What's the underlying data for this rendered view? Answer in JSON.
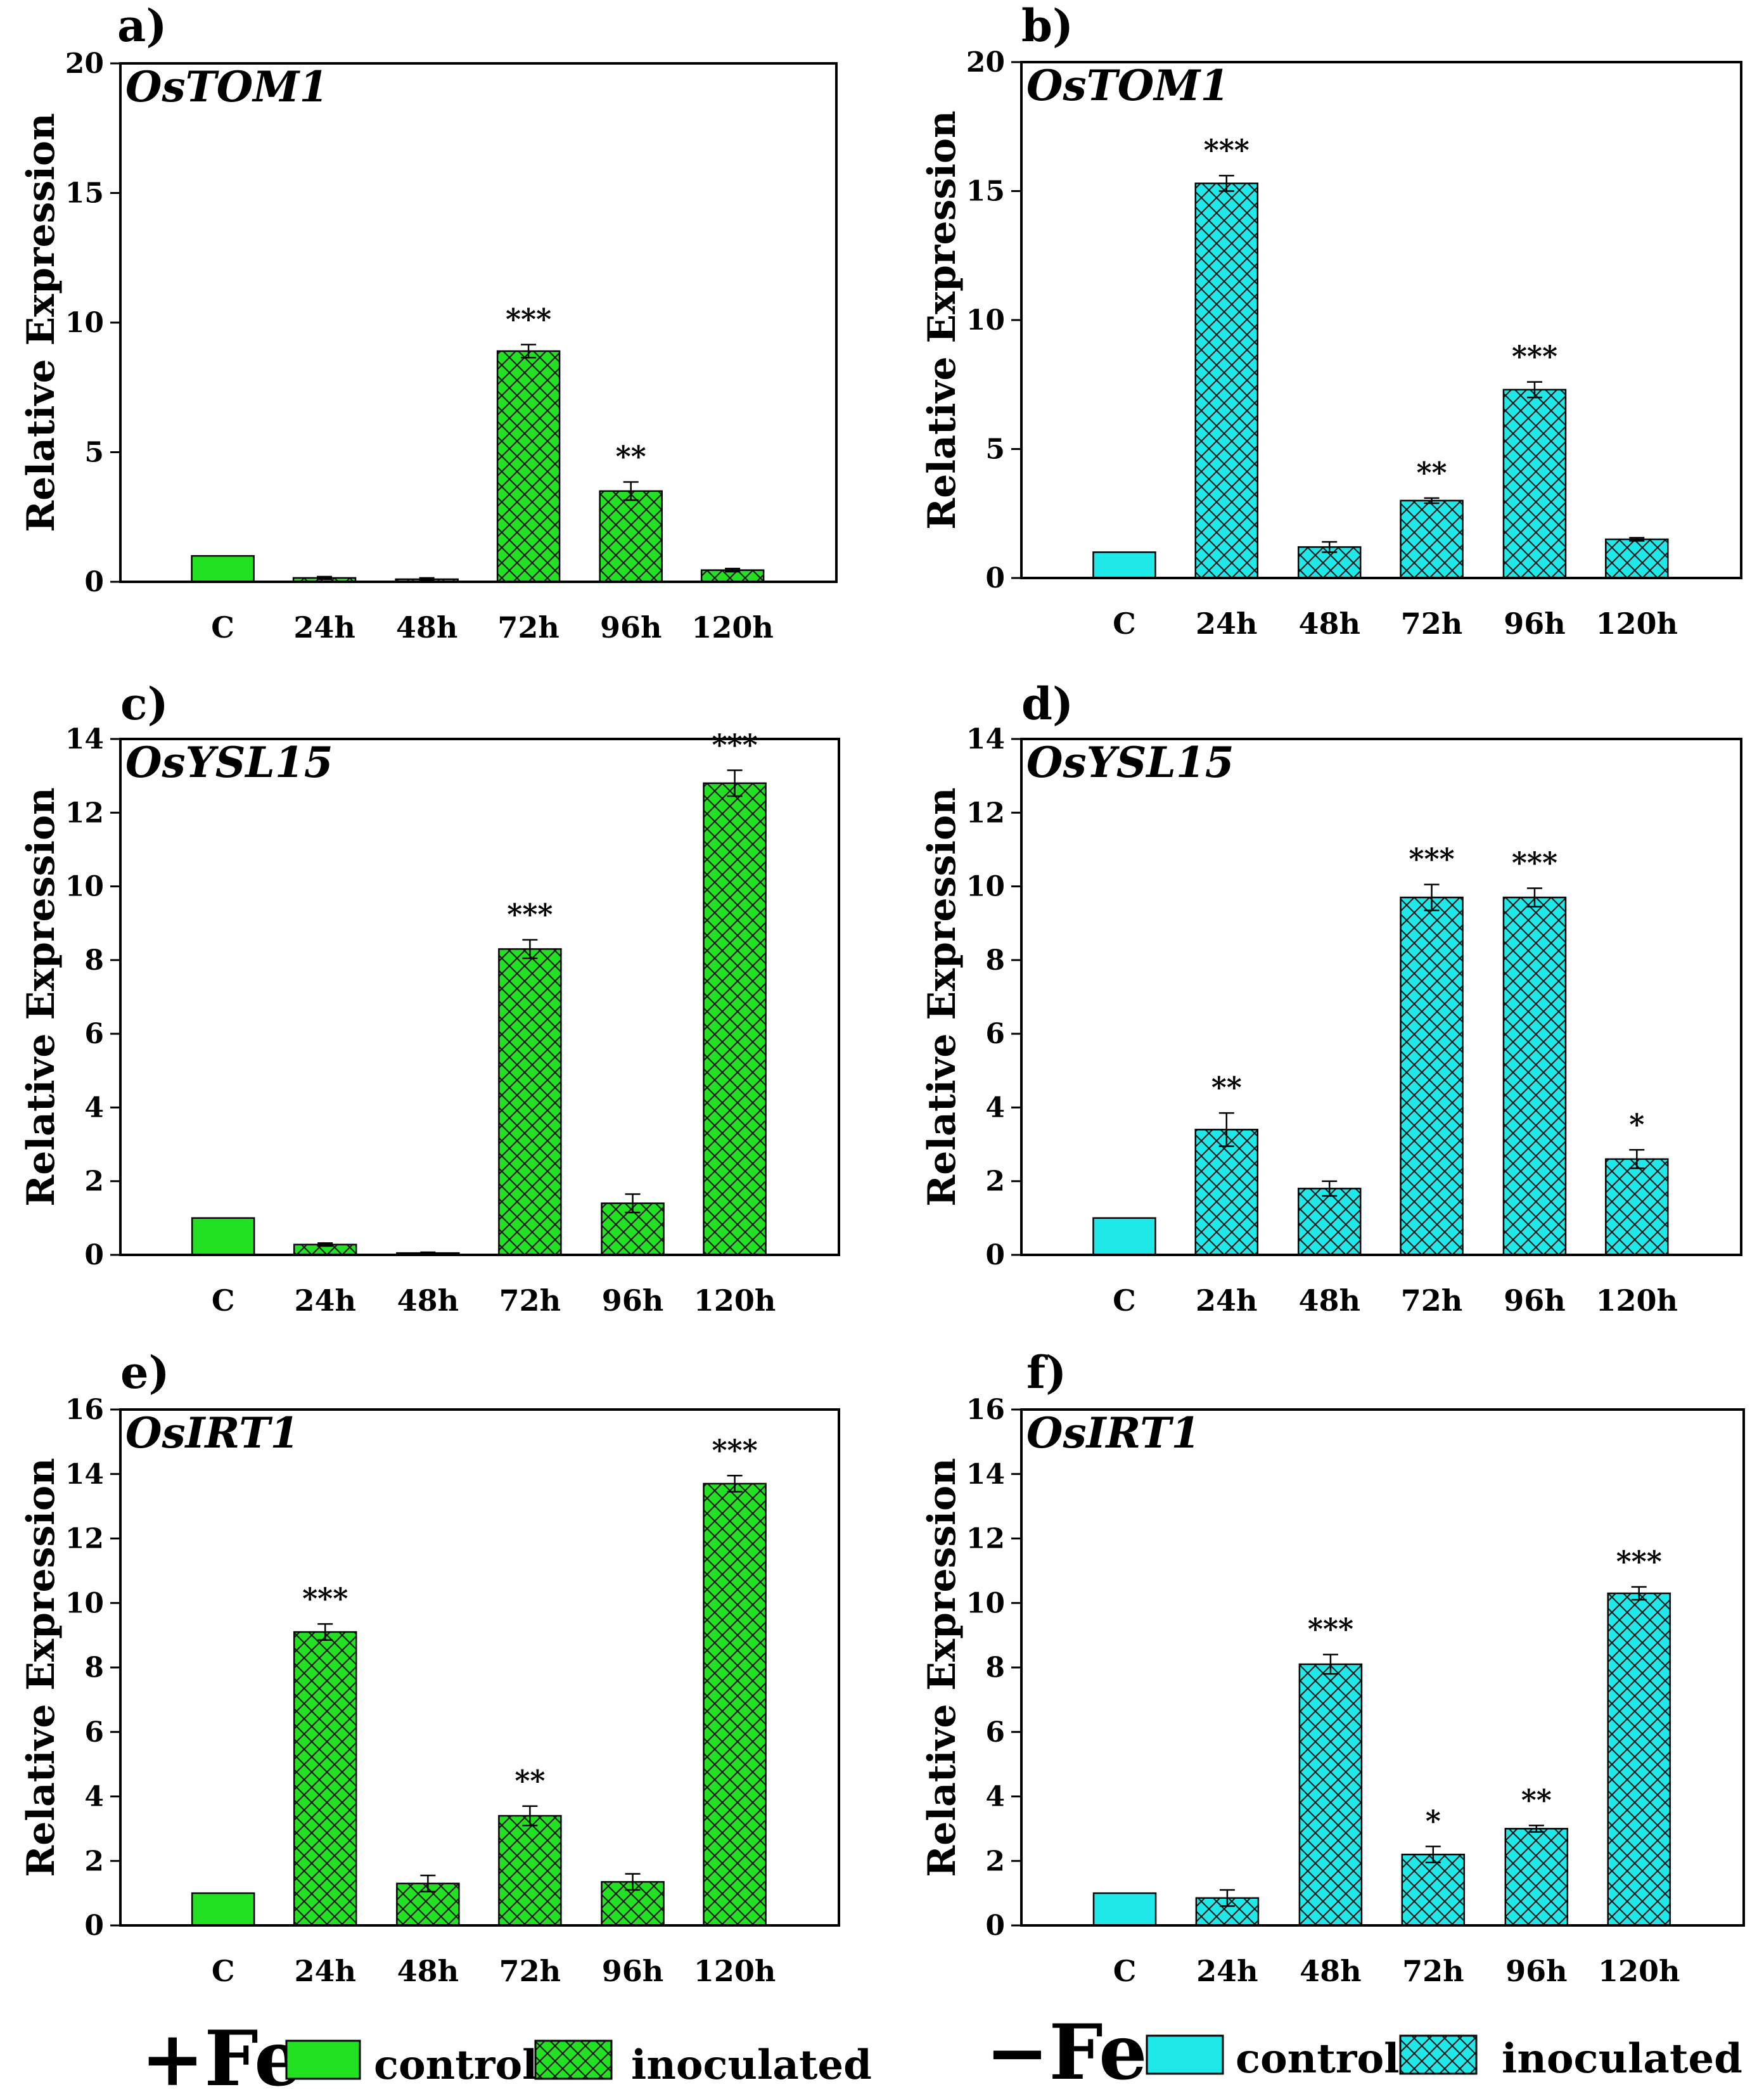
{
  "colors": {
    "plusFe": "#22e022",
    "minusFe": "#1ee8e8",
    "hatch": "#1a1a1a",
    "axis": "#000000"
  },
  "legend": {
    "left": {
      "symbol": "+Fe",
      "control": "control",
      "inoculated": "inoculated"
    },
    "right": {
      "symbol": "−Fe",
      "control": "control",
      "inoculated": "inoculated"
    }
  },
  "chart_data": [
    {
      "id": "a",
      "panel_label": "a)",
      "gene": "OsTOM1",
      "type": "bar",
      "ylabel": "Relative Expression",
      "ylim": [
        0,
        20
      ],
      "yticks": [
        0,
        5,
        10,
        15,
        20
      ],
      "tick_labels": [
        "0",
        "5",
        "10",
        "15",
        "20"
      ],
      "categories": [
        "C",
        "24h",
        "48h",
        "72h",
        "96h",
        "120h"
      ],
      "values": [
        1.0,
        0.15,
        0.1,
        8.9,
        3.5,
        0.45
      ],
      "errors": [
        0,
        0.05,
        0.05,
        0.25,
        0.35,
        0.06
      ],
      "significance": [
        "",
        "",
        "",
        "***",
        "**",
        ""
      ],
      "condition": "+Fe"
    },
    {
      "id": "b",
      "panel_label": "b)",
      "gene": "OsTOM1",
      "type": "bar",
      "ylabel": "Relative Expression",
      "ylim": [
        0,
        20
      ],
      "yticks": [
        0,
        5,
        10,
        15,
        20
      ],
      "tick_labels": [
        "0",
        "5",
        "10",
        "15",
        "20"
      ],
      "categories": [
        "C",
        "24h",
        "48h",
        "72h",
        "96h",
        "120h"
      ],
      "values": [
        1.0,
        15.3,
        1.2,
        3.0,
        7.3,
        1.5
      ],
      "errors": [
        0,
        0.3,
        0.2,
        0.1,
        0.3,
        0.06
      ],
      "significance": [
        "",
        "***",
        "",
        "**",
        "***",
        ""
      ],
      "condition": "-Fe"
    },
    {
      "id": "c",
      "panel_label": "c)",
      "gene": "OsYSL15",
      "type": "bar",
      "ylabel": "Relative Expression",
      "ylim": [
        0,
        14
      ],
      "yticks": [
        0,
        2,
        4,
        6,
        8,
        10,
        12,
        14
      ],
      "tick_labels": [
        "0",
        "2",
        "4",
        "6",
        "8",
        "10",
        "12",
        "14"
      ],
      "categories": [
        "C",
        "24h",
        "48h",
        "72h",
        "96h",
        "120h"
      ],
      "values": [
        1.0,
        0.28,
        0.05,
        8.3,
        1.4,
        12.8
      ],
      "errors": [
        0,
        0.04,
        0.02,
        0.25,
        0.25,
        0.35
      ],
      "significance": [
        "",
        "",
        "",
        "***",
        "",
        "***"
      ],
      "condition": "+Fe"
    },
    {
      "id": "d",
      "panel_label": "d)",
      "gene": "OsYSL15",
      "type": "bar",
      "ylabel": "Relative Expression",
      "ylim": [
        0,
        14
      ],
      "yticks": [
        0,
        2,
        4,
        6,
        8,
        10,
        12,
        14
      ],
      "tick_labels": [
        "0",
        "2",
        "4",
        "6",
        "8",
        "10",
        "12",
        "14"
      ],
      "categories": [
        "C",
        "24h",
        "48h",
        "72h",
        "96h",
        "120h"
      ],
      "values": [
        1.0,
        3.4,
        1.8,
        9.7,
        9.7,
        2.6
      ],
      "errors": [
        0,
        0.45,
        0.2,
        0.35,
        0.25,
        0.25
      ],
      "significance": [
        "",
        "**",
        "",
        "***",
        "***",
        "*"
      ],
      "condition": "-Fe"
    },
    {
      "id": "e",
      "panel_label": "e)",
      "gene": "OsIRT1",
      "type": "bar",
      "ylabel": "Relative Expression",
      "ylim": [
        0,
        16
      ],
      "yticks": [
        0,
        2,
        4,
        6,
        8,
        10,
        12,
        14,
        16
      ],
      "tick_labels": [
        "0",
        "2",
        "4",
        "6",
        "8",
        "10",
        "12",
        "14",
        "16"
      ],
      "categories": [
        "C",
        "24h",
        "48h",
        "72h",
        "96h",
        "120h"
      ],
      "values": [
        1.0,
        9.1,
        1.3,
        3.4,
        1.35,
        13.7
      ],
      "errors": [
        0,
        0.25,
        0.25,
        0.3,
        0.25,
        0.25
      ],
      "significance": [
        "",
        "***",
        "",
        "**",
        "",
        "***"
      ],
      "condition": "+Fe"
    },
    {
      "id": "f",
      "panel_label": "f)",
      "gene": "OsIRT1",
      "type": "bar",
      "ylabel": "Relative Expression",
      "ylim": [
        0,
        16
      ],
      "yticks": [
        0,
        2,
        4,
        6,
        8,
        10,
        12,
        14,
        16
      ],
      "tick_labels": [
        "0",
        "2",
        "4",
        "6",
        "8",
        "10",
        "12",
        "14",
        "16"
      ],
      "categories": [
        "C",
        "24h",
        "48h",
        "72h",
        "96h",
        "120h"
      ],
      "values": [
        1.0,
        0.85,
        8.1,
        2.2,
        3.0,
        10.3
      ],
      "errors": [
        0,
        0.25,
        0.3,
        0.25,
        0.1,
        0.2
      ],
      "significance": [
        "",
        "",
        "***",
        "*",
        "**",
        "***"
      ],
      "condition": "-Fe"
    }
  ]
}
